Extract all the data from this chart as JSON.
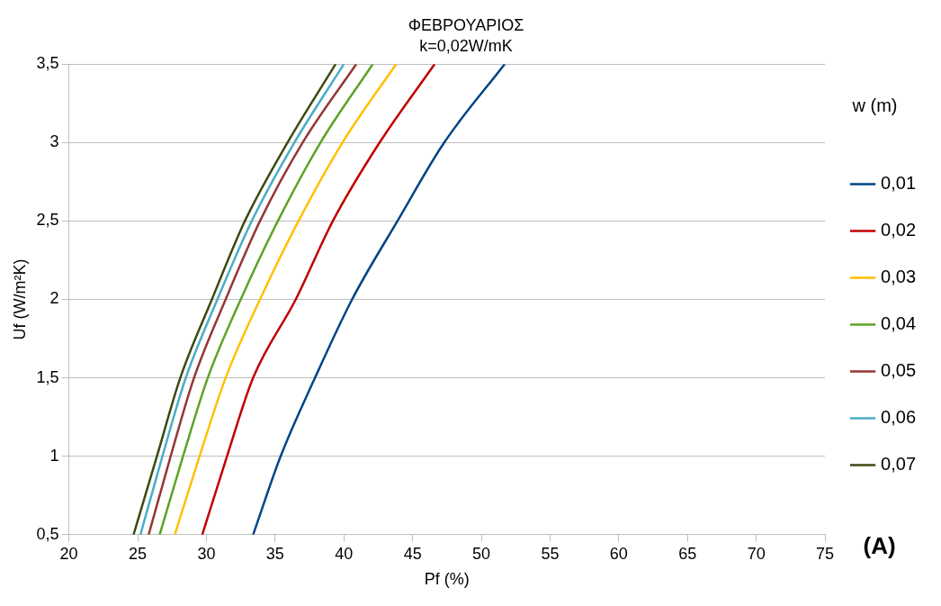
{
  "chart_data": {
    "type": "line",
    "title": "ΦΕΒΡΟΥΑΡΙΟΣ",
    "subtitle": "k=0,02W/mK",
    "xlabel": "Pf (%)",
    "ylabel": "Uf (W/m²K)",
    "legend_title": "w (m)",
    "annotations": [
      "(A)"
    ],
    "xlim": [
      20,
      75
    ],
    "xticks": [
      20,
      25,
      30,
      35,
      40,
      45,
      50,
      55,
      60,
      65,
      70,
      75
    ],
    "ylim": [
      0.5,
      3.5
    ],
    "yticks": [
      {
        "value": 0.5,
        "label": "0,5"
      },
      {
        "value": 1,
        "label": "1"
      },
      {
        "value": 1.5,
        "label": "1,5"
      },
      {
        "value": 2,
        "label": "2"
      },
      {
        "value": 2.5,
        "label": "2,5"
      },
      {
        "value": 3,
        "label": "3"
      },
      {
        "value": 3.5,
        "label": "3,5"
      }
    ],
    "grid": "y",
    "legend": "right",
    "marker": "none",
    "line_style": "solid",
    "series": [
      {
        "name": "0,01",
        "color": "#004586",
        "x": [
          33.4,
          35.4,
          37.9,
          40.6,
          43.9,
          47.3,
          51.7
        ],
        "values": [
          0.5,
          1,
          1.5,
          2,
          2.5,
          3,
          3.5
        ]
      },
      {
        "name": "0,02",
        "color": "#c00000",
        "x": [
          29.7,
          31.5,
          33.4,
          36.5,
          39.2,
          42.6,
          46.6
        ],
        "values": [
          0.5,
          1,
          1.5,
          2,
          2.5,
          3,
          3.5
        ]
      },
      {
        "name": "0,03",
        "color": "#ffc000",
        "x": [
          27.7,
          29.5,
          31.4,
          33.9,
          36.7,
          39.9,
          43.8
        ],
        "values": [
          0.5,
          1,
          1.5,
          2,
          2.5,
          3,
          3.5
        ]
      },
      {
        "name": "0,04",
        "color": "#5ea226",
        "x": [
          26.6,
          28.3,
          30.1,
          32.5,
          35.2,
          38.3,
          42.1
        ],
        "values": [
          0.5,
          1,
          1.5,
          2,
          2.5,
          3,
          3.5
        ]
      },
      {
        "name": "0,05",
        "color": "#943634",
        "x": [
          25.8,
          27.4,
          29.1,
          31.4,
          33.9,
          37.0,
          40.9
        ],
        "values": [
          0.5,
          1,
          1.5,
          2,
          2.5,
          3,
          3.5
        ]
      },
      {
        "name": "0,06",
        "color": "#4bacc6",
        "x": [
          25.2,
          26.8,
          28.5,
          30.8,
          33.3,
          36.4,
          40.0
        ],
        "values": [
          0.5,
          1,
          1.5,
          2,
          2.5,
          3,
          3.5
        ]
      },
      {
        "name": "0,07",
        "color": "#3a4a12",
        "x": [
          24.7,
          26.4,
          28.1,
          30.4,
          32.8,
          35.9,
          39.4
        ],
        "values": [
          0.5,
          1,
          1.5,
          2,
          2.5,
          3,
          3.5
        ]
      }
    ]
  }
}
